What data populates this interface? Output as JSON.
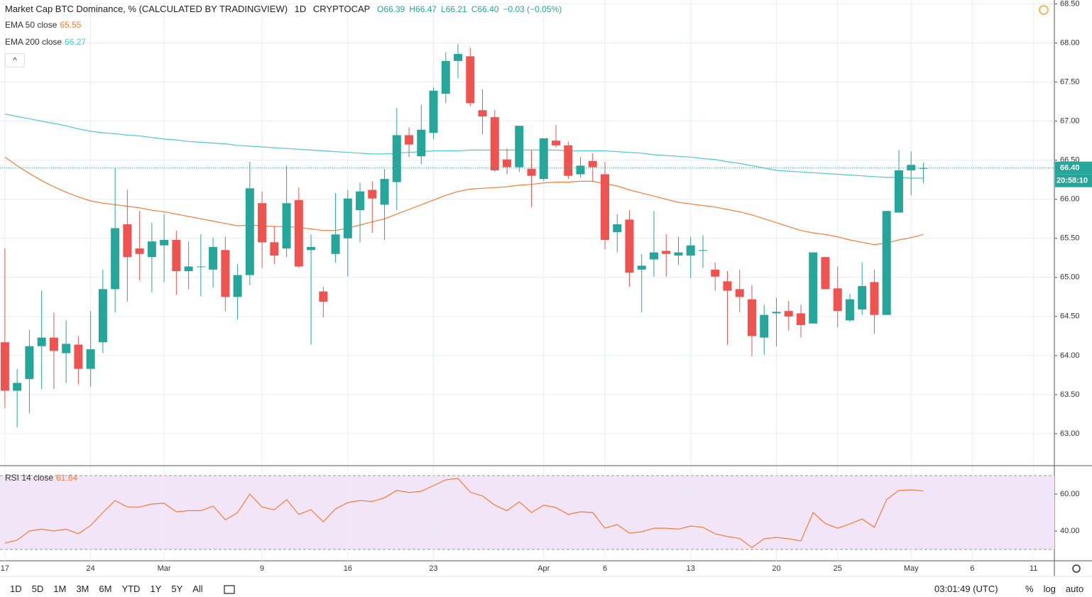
{
  "header": {
    "title": "Market Cap BTC Dominance, % (CALCULATED BY TRADINGVIEW)",
    "interval": "1D",
    "exchange": "CRYPTOCAP",
    "stats": [
      "O66.39",
      "H66.47",
      "L66.21",
      "C66.40",
      "−0.03 (−0.05%)"
    ]
  },
  "chart_data": [
    {
      "type": "candlestick",
      "up_color": "#26a69a",
      "down_color": "#ef5350",
      "grid": true,
      "open": [
        64.17,
        63.55,
        63.7,
        64.12,
        64.23,
        64.03,
        64.14,
        63.83,
        64.17,
        64.85,
        65.68,
        65.37,
        65.26,
        65.41,
        65.48,
        65.08,
        65.14,
        65.1,
        65.35,
        64.75,
        65.03,
        65.95,
        65.45,
        65.37,
        65.99,
        65.35,
        64.82,
        65.3,
        65.5,
        65.86,
        66.12,
        65.93,
        66.22,
        66.82,
        66.55,
        66.85,
        67.35,
        67.77,
        67.83,
        67.14,
        67.05,
        66.51,
        66.41,
        66.39,
        66.26,
        66.75,
        66.69,
        66.32,
        66.49,
        66.32,
        65.58,
        65.74,
        65.1,
        65.23,
        65.34,
        65.28,
        65.28,
        65.35,
        65.1,
        64.95,
        64.85,
        64.72,
        64.23,
        64.54,
        64.57,
        64.54,
        64.41,
        65.26,
        64.86,
        64.45,
        64.59,
        64.94,
        64.52,
        65.83,
        66.37,
        66.39
      ],
      "high": [
        65.37,
        63.83,
        64.33,
        64.83,
        64.55,
        64.45,
        64.25,
        64.57,
        65.1,
        66.4,
        66.12,
        65.85,
        65.7,
        65.81,
        65.6,
        65.46,
        65.55,
        65.51,
        65.52,
        65.17,
        66.48,
        66.1,
        65.66,
        66.43,
        66.15,
        65.55,
        64.88,
        66.08,
        66.12,
        66.21,
        66.23,
        66.39,
        67.17,
        66.92,
        67.21,
        67.43,
        67.88,
        67.99,
        67.94,
        67.41,
        67.14,
        66.65,
        66.94,
        66.63,
        66.78,
        66.95,
        66.74,
        66.54,
        66.59,
        66.48,
        65.81,
        65.86,
        65.3,
        65.85,
        65.55,
        65.52,
        65.52,
        65.54,
        65.19,
        65.08,
        65.1,
        64.9,
        64.65,
        64.74,
        64.7,
        64.65,
        65.32,
        65.26,
        65.14,
        64.79,
        65.19,
        65.1,
        65.85,
        66.63,
        66.61,
        66.47
      ],
      "low": [
        63.33,
        63.08,
        63.26,
        63.57,
        63.57,
        63.65,
        63.63,
        63.6,
        64.03,
        64.55,
        64.69,
        64.96,
        64.81,
        64.94,
        64.78,
        64.85,
        64.76,
        64.87,
        64.57,
        64.46,
        64.9,
        65.12,
        65.17,
        65.26,
        65.12,
        64.14,
        64.49,
        65.19,
        65.01,
        65.45,
        65.57,
        65.48,
        65.86,
        66.54,
        66.45,
        66.77,
        67.23,
        67.55,
        67.19,
        66.83,
        66.35,
        66.32,
        66.35,
        65.9,
        66.23,
        66.66,
        66.26,
        66.28,
        66.23,
        65.36,
        65.32,
        64.88,
        64.55,
        65.01,
        65.01,
        65.16,
        64.99,
        65.12,
        64.83,
        64.14,
        64.55,
        63.99,
        64.01,
        64.12,
        64.32,
        64.23,
        64.41,
        64.85,
        64.36,
        64.43,
        64.52,
        64.28,
        64.52,
        65.83,
        66.05,
        66.21
      ],
      "close": [
        63.55,
        63.65,
        64.12,
        64.23,
        64.06,
        64.15,
        63.83,
        64.08,
        64.85,
        65.63,
        65.26,
        65.3,
        65.46,
        65.48,
        65.08,
        65.14,
        65.14,
        65.39,
        64.75,
        65.03,
        66.14,
        65.45,
        65.28,
        65.95,
        65.14,
        65.39,
        64.69,
        65.55,
        66.01,
        66.1,
        66.01,
        66.26,
        66.82,
        66.7,
        66.89,
        67.39,
        67.77,
        67.86,
        67.23,
        67.06,
        66.37,
        66.41,
        66.94,
        66.3,
        66.78,
        66.69,
        66.3,
        66.43,
        66.41,
        65.48,
        65.68,
        65.06,
        65.15,
        65.32,
        65.3,
        65.32,
        65.41,
        65.35,
        65.01,
        64.83,
        64.75,
        64.25,
        64.52,
        64.56,
        64.5,
        64.39,
        65.32,
        64.85,
        64.57,
        64.72,
        64.89,
        64.52,
        65.85,
        66.37,
        66.44,
        66.4
      ],
      "series": [
        {
          "name": "EMA 50 close",
          "color": "#f57c36",
          "values": [
            66.54,
            66.43,
            66.33,
            66.24,
            66.16,
            66.09,
            66.03,
            65.98,
            65.95,
            65.93,
            65.91,
            65.89,
            65.86,
            65.84,
            65.81,
            65.78,
            65.75,
            65.72,
            65.69,
            65.66,
            65.67,
            65.66,
            65.65,
            65.65,
            65.64,
            65.62,
            65.6,
            65.6,
            65.63,
            65.67,
            65.71,
            65.75,
            65.81,
            65.87,
            65.93,
            65.99,
            66.05,
            66.1,
            66.13,
            66.14,
            66.15,
            66.16,
            66.18,
            66.19,
            66.21,
            66.22,
            66.22,
            66.23,
            66.23,
            66.2,
            66.17,
            66.12,
            66.08,
            66.04,
            66.0,
            65.96,
            65.94,
            65.92,
            65.9,
            65.87,
            65.84,
            65.8,
            65.75,
            65.7,
            65.65,
            65.6,
            65.57,
            65.55,
            65.52,
            65.48,
            65.45,
            65.42,
            65.44,
            65.48,
            65.51,
            65.55
          ]
        },
        {
          "name": "EMA 200 close",
          "color": "#4fc7d0",
          "values": [
            67.09,
            67.06,
            67.03,
            67.0,
            66.97,
            66.94,
            66.9,
            66.87,
            66.85,
            66.84,
            66.82,
            66.81,
            66.79,
            66.77,
            66.76,
            66.74,
            66.73,
            66.72,
            66.71,
            66.69,
            66.68,
            66.67,
            66.66,
            66.65,
            66.64,
            66.63,
            66.62,
            66.61,
            66.6,
            66.59,
            66.58,
            66.58,
            66.59,
            66.6,
            66.61,
            66.62,
            66.62,
            66.62,
            66.63,
            66.63,
            66.63,
            66.63,
            66.63,
            66.63,
            66.63,
            66.63,
            66.62,
            66.62,
            66.62,
            66.62,
            66.61,
            66.6,
            66.59,
            66.57,
            66.56,
            66.55,
            66.54,
            66.52,
            66.51,
            66.48,
            66.46,
            66.43,
            66.4,
            66.37,
            66.36,
            66.35,
            66.34,
            66.33,
            66.32,
            66.31,
            66.3,
            66.29,
            66.28,
            66.28,
            66.27,
            66.27
          ]
        }
      ],
      "last_price_label": "66.40",
      "countdown": "20:58:10",
      "xlim": [
        -0.4,
        85.7
      ],
      "xticks": [
        {
          "value": 0,
          "label": "17"
        },
        {
          "value": 7,
          "label": "24"
        },
        {
          "value": 13,
          "label": "Mar"
        },
        {
          "value": 21,
          "label": "9"
        },
        {
          "value": 28,
          "label": "16"
        },
        {
          "value": 35,
          "label": "23"
        },
        {
          "value": 44,
          "label": "Apr"
        },
        {
          "value": 49,
          "label": "6"
        },
        {
          "value": 56,
          "label": "13"
        },
        {
          "value": 63,
          "label": "20"
        },
        {
          "value": 68,
          "label": "25"
        },
        {
          "value": 74,
          "label": "May"
        },
        {
          "value": 79,
          "label": "6"
        },
        {
          "value": 84,
          "label": "11"
        }
      ],
      "ylim": [
        62.6,
        68.55
      ],
      "yticks": [
        {
          "value": 63,
          "label": "63.00"
        },
        {
          "value": 63.5,
          "label": "63.50"
        },
        {
          "value": 64,
          "label": "64.00"
        },
        {
          "value": 64.5,
          "label": "64.50"
        },
        {
          "value": 65,
          "label": "65.00"
        },
        {
          "value": 65.5,
          "label": "65.50"
        },
        {
          "value": 66,
          "label": "66.00"
        },
        {
          "value": 66.5,
          "label": "66.50"
        },
        {
          "value": 67,
          "label": "67.00"
        },
        {
          "value": 67.5,
          "label": "67.50"
        },
        {
          "value": 68,
          "label": "68.00"
        },
        {
          "value": 68.5,
          "label": "68.50"
        }
      ]
    },
    {
      "type": "line",
      "grid": true,
      "series": [
        {
          "name": "RSI 14 close",
          "color": "#f57c36",
          "values": [
            33.5,
            35,
            40,
            41,
            40,
            41,
            38.5,
            43,
            50,
            56.5,
            53,
            53,
            54.6,
            55,
            50.4,
            51,
            51,
            53.5,
            46,
            50,
            60,
            53,
            51.5,
            57,
            49,
            51.5,
            45,
            52,
            55.4,
            56.5,
            56,
            58,
            62,
            60.8,
            61.5,
            64.6,
            67.7,
            68.5,
            61,
            59,
            54,
            51,
            55.8,
            50,
            54,
            52.7,
            49,
            50.4,
            50,
            41.5,
            43.5,
            38.8,
            39.6,
            41.5,
            41.5,
            41,
            42.7,
            42,
            38.5,
            37,
            36,
            31,
            35.8,
            36.5,
            35.8,
            34.6,
            50,
            44,
            41.5,
            43.8,
            46.5,
            42,
            57,
            62,
            62.3,
            61.64
          ]
        }
      ],
      "band": [
        30,
        70
      ],
      "band_color": "#f3e5f8",
      "ylim": [
        23.85,
        75
      ],
      "yticks": [
        {
          "value": 40,
          "label": "40.00"
        },
        {
          "value": 60,
          "label": "60.00"
        }
      ]
    }
  ],
  "toolbar": {
    "ranges": [
      "1D",
      "5D",
      "1M",
      "3M",
      "6M",
      "YTD",
      "1Y",
      "5Y",
      "All"
    ],
    "clock": "03:01:49 (UTC)",
    "options": [
      "%",
      "log",
      "auto"
    ]
  }
}
